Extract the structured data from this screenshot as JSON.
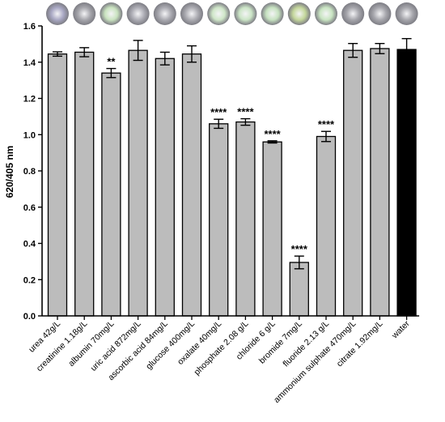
{
  "chart_data": {
    "type": "bar",
    "title": "",
    "xlabel": "",
    "ylabel": "620/405 nm",
    "ylim": [
      0,
      1.6
    ],
    "yticks": [
      "0.0",
      "0.2",
      "0.4",
      "0.6",
      "0.8",
      "1.0",
      "1.2",
      "1.4",
      "1.6"
    ],
    "grid": false,
    "legend": "none",
    "categories": [
      "urea 42g/L",
      "creatinine 1.18g/L",
      "albumin 70mg/L",
      "uric acid 872mg/L",
      "ascorbic acid 84mg/L",
      "glucose 400mg/L",
      "oxalate 40mg/L",
      "phosphate 2.08 g/L",
      "chloride 6 g/L",
      "bromide 7mg/L",
      "fluoride 2.13 g/L",
      "ammonium sulphate 470mg/L",
      "citrate 1.92mg/L",
      "water"
    ],
    "values": [
      1.445,
      1.455,
      1.34,
      1.465,
      1.42,
      1.445,
      1.06,
      1.07,
      0.96,
      0.295,
      0.99,
      1.465,
      1.475,
      1.47
    ],
    "errors": [
      0.012,
      0.025,
      0.025,
      0.055,
      0.035,
      0.045,
      0.025,
      0.018,
      0.006,
      0.035,
      0.028,
      0.038,
      0.028,
      0.06
    ],
    "significance": [
      "",
      "",
      "**",
      "",
      "",
      "",
      "****",
      "****",
      "****",
      "****",
      "****",
      "",
      "",
      ""
    ],
    "bar_colors": [
      "#bcbcbc",
      "#bcbcbc",
      "#bcbcbc",
      "#bcbcbc",
      "#bcbcbc",
      "#bcbcbc",
      "#bcbcbc",
      "#bcbcbc",
      "#bcbcbc",
      "#bcbcbc",
      "#bcbcbc",
      "#bcbcbc",
      "#bcbcbc",
      "#000000"
    ],
    "well_colors": [
      "#a9a8c4",
      "#a7a7ad",
      "#c9e3bf",
      "#aeaeb6",
      "#ababb2",
      "#adadb3",
      "#cfe6c8",
      "#cbe5c6",
      "#c6e2c0",
      "#c4d79b",
      "#c9e5c2",
      "#a6a6ac",
      "#a8a8ae",
      "#a7a7ad"
    ]
  }
}
